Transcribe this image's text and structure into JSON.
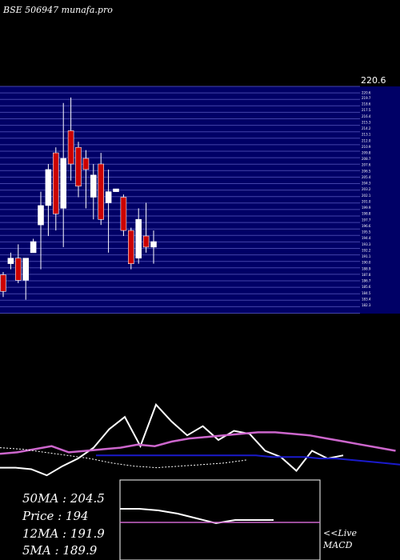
{
  "title": "BSE 506947 munafa.pro",
  "colors": {
    "background": "#000000",
    "price_band": "#000066",
    "band_lines": "#4444aa",
    "up_candle": "#ffffff",
    "down_candle": "#cc0000",
    "ma_white": "#ffffff",
    "ma_purple": "#cc66cc",
    "ma_blue": "#1a1acc",
    "macd_line": "#ffffff",
    "macd_signal": "#cc66cc"
  },
  "stats": {
    "ma50": "50MA : 204.5",
    "price": "Price  : 194",
    "ma12": "12MA : 191.9",
    "ma5": "5MA : 189.9"
  },
  "live_label": "<<Live",
  "macd_label": "MACD",
  "price_top_label": "220.6",
  "chart_data": {
    "type": "candlestick",
    "title": "BSE 506947 munafa.pro",
    "ylim": [
      181,
      222
    ],
    "price_ticks": [
      220.6,
      219.7,
      218.6,
      217.5,
      216.4,
      215.3,
      214.2,
      213.1,
      212.0,
      210.9,
      209.8,
      208.7,
      207.6,
      206.5,
      205.4,
      204.3,
      203.2,
      202.1,
      201.0,
      199.9,
      198.8,
      197.7,
      196.6,
      195.5,
      194.4,
      193.3,
      192.2,
      191.1,
      190.0,
      188.9,
      187.8,
      186.7,
      185.6,
      184.5,
      183.4,
      182.3
    ],
    "candles": [
      {
        "o": 188,
        "h": 188.5,
        "c": 185,
        "l": 184,
        "dir": "down"
      },
      {
        "o": 190,
        "h": 192,
        "c": 191,
        "l": 189,
        "dir": "up"
      },
      {
        "o": 191,
        "h": 193.5,
        "c": 187,
        "l": 186.5,
        "dir": "down"
      },
      {
        "o": 187,
        "h": 191,
        "c": 191,
        "l": 183.5,
        "dir": "up"
      },
      {
        "o": 194,
        "h": 194.5,
        "c": 192,
        "l": 192,
        "dir": "up"
      },
      {
        "o": 197,
        "h": 203,
        "c": 200.5,
        "l": 189,
        "dir": "up"
      },
      {
        "o": 200.5,
        "h": 208,
        "c": 207,
        "l": 195,
        "dir": "up"
      },
      {
        "o": 210,
        "h": 211,
        "c": 199,
        "l": 196,
        "dir": "down"
      },
      {
        "o": 209,
        "h": 219,
        "c": 200,
        "l": 193,
        "dir": "up"
      },
      {
        "o": 214,
        "h": 220,
        "c": 208,
        "l": 205,
        "dir": "down"
      },
      {
        "o": 211,
        "h": 212,
        "c": 204,
        "l": 202,
        "dir": "down"
      },
      {
        "o": 209,
        "h": 210.5,
        "c": 207,
        "l": 200,
        "dir": "down"
      },
      {
        "o": 202,
        "h": 208,
        "c": 206,
        "l": 198,
        "dir": "up"
      },
      {
        "o": 208,
        "h": 210,
        "c": 198,
        "l": 197,
        "dir": "down"
      },
      {
        "o": 201,
        "h": 207,
        "c": 203,
        "l": 192,
        "dir": "up"
      },
      {
        "o": 203,
        "h": 203.5,
        "c": 203.5,
        "l": 203,
        "dir": "up"
      },
      {
        "o": 202,
        "h": 202.5,
        "c": 196,
        "l": 195,
        "dir": "down"
      },
      {
        "o": 196,
        "h": 196.5,
        "c": 190,
        "l": 189,
        "dir": "down"
      },
      {
        "o": 191,
        "h": 200,
        "c": 198,
        "l": 190,
        "dir": "up"
      },
      {
        "o": 195,
        "h": 201,
        "c": 193,
        "l": 192,
        "dir": "down"
      },
      {
        "o": 193,
        "h": 196,
        "c": 194,
        "l": 190,
        "dir": "up"
      }
    ],
    "indicator_series": [
      {
        "values": [
          -0.2,
          -0.2,
          -0.3,
          -0.7,
          -0.1,
          0.4,
          1.1,
          2.3,
          3.1,
          1.2,
          3.9,
          2.8,
          1.9,
          2.5,
          1.6,
          2.2,
          2.0,
          0.9,
          0.5,
          -0.4,
          0.9,
          0.4,
          0.6
        ]
      },
      {
        "values": [
          0.7,
          0.8,
          1.0,
          1.2,
          0.8,
          0.9,
          1.0,
          1.1,
          1.3,
          1.2,
          1.5,
          1.7,
          1.8,
          1.9,
          2.0,
          2.1,
          2.1,
          2.0,
          1.9,
          1.7,
          1.5,
          1.3,
          1.1,
          0.9
        ]
      },
      {
        "values": [
          0.6,
          0.6,
          0.6,
          0.6,
          0.6,
          0.6,
          0.6,
          0.6,
          0.6,
          0.6,
          0.6,
          0.5,
          0.5,
          0.5,
          0.4,
          0.4,
          0.3,
          0.2,
          0.1,
          0.0
        ]
      },
      {
        "values": [
          1.1,
          1.0,
          0.8,
          0.6,
          0.4,
          0.1,
          -0.1,
          -0.2,
          -0.1,
          0.0,
          0.1,
          0.3
        ]
      }
    ],
    "macd": {
      "line": [
        1.2,
        1.2,
        1.1,
        0.9,
        0.6,
        0.3,
        0.5,
        0.5,
        0.5
      ],
      "signal": [
        0.0,
        0.0,
        0.0,
        0.0,
        0.0,
        0.0,
        0.0,
        0.0,
        0.0,
        0.0,
        0.0,
        0.0
      ]
    }
  }
}
